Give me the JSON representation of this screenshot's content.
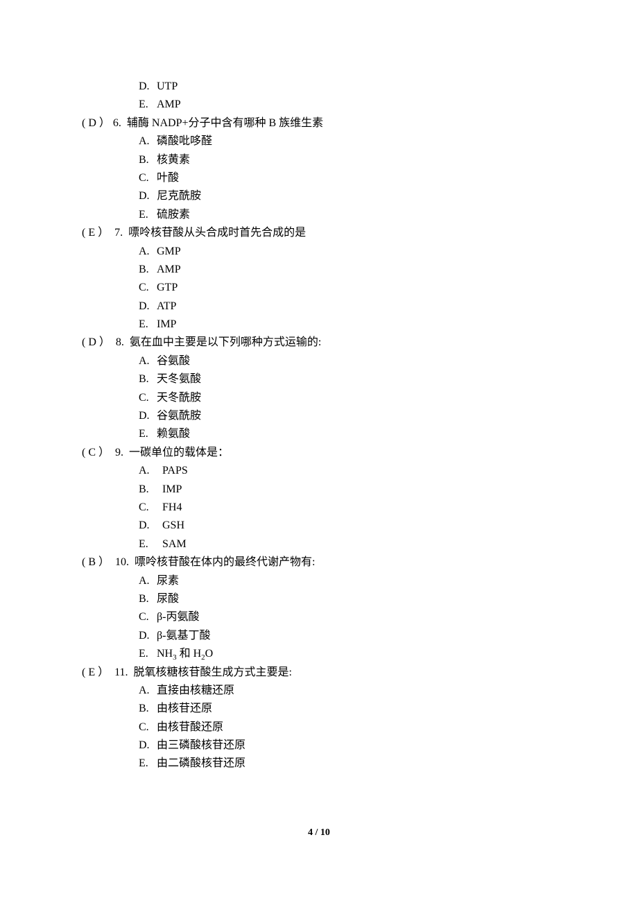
{
  "prev_options": [
    {
      "letter": "D.",
      "text": "UTP"
    },
    {
      "letter": "E.",
      "text": "AMP"
    }
  ],
  "questions": [
    {
      "answer": "D",
      "number": "6.",
      "stem": "辅酶 NADP+分子中含有哪种 B 族维生素",
      "options": [
        {
          "letter": "A.",
          "text": "磷酸吡哆醛"
        },
        {
          "letter": "B.",
          "text": "核黄素"
        },
        {
          "letter": "C.",
          "text": "叶酸"
        },
        {
          "letter": "D.",
          "text": "尼克酰胺"
        },
        {
          "letter": "E.",
          "text": "硫胺素"
        }
      ],
      "wide_num": false,
      "wide_opt": false
    },
    {
      "answer": "E",
      "number": "7.",
      "stem": "嘌呤核苷酸从头合成时首先合成的是",
      "options": [
        {
          "letter": "A.",
          "text": "GMP"
        },
        {
          "letter": "B.",
          "text": "AMP"
        },
        {
          "letter": "C.",
          "text": "GTP"
        },
        {
          "letter": "D.",
          "text": "ATP"
        },
        {
          "letter": "E.",
          "text": "IMP"
        }
      ],
      "wide_num": true,
      "wide_opt": false
    },
    {
      "answer": "D",
      "number": "8.",
      "stem": "氨在血中主要是以下列哪种方式运输的:",
      "options": [
        {
          "letter": "A.",
          "text": "谷氨酸"
        },
        {
          "letter": "B.",
          "text": "天冬氨酸"
        },
        {
          "letter": "C.",
          "text": "天冬酰胺"
        },
        {
          "letter": "D.",
          "text": "谷氨酰胺"
        },
        {
          "letter": "E.",
          "text": "赖氨酸"
        }
      ],
      "wide_num": true,
      "wide_opt": false
    },
    {
      "answer": "C",
      "number": "9.",
      "stem": "一碳单位的载体是：",
      "options": [
        {
          "letter": "A.",
          "text": "PAPS"
        },
        {
          "letter": "B.",
          "text": "IMP"
        },
        {
          "letter": "C.",
          "text": "FH4"
        },
        {
          "letter": "D.",
          "text": "GSH"
        },
        {
          "letter": "E.",
          "text": "SAM"
        }
      ],
      "wide_num": true,
      "wide_opt": true
    },
    {
      "answer": "B",
      "number": "10.",
      "stem": "嘌呤核苷酸在体内的最终代谢产物有:",
      "options": [
        {
          "letter": "A.",
          "text": "尿素"
        },
        {
          "letter": "B.",
          "text": "尿酸"
        },
        {
          "letter": "C.",
          "text": "β-丙氨酸"
        },
        {
          "letter": "D.",
          "text": "β-氨基丁酸"
        },
        {
          "letter": "E.",
          "text": "NH<sub>3</sub> 和 H<sub>2</sub>O",
          "html": true
        }
      ],
      "wide_num": true,
      "wide_opt": false
    },
    {
      "answer": "E",
      "number": "11.",
      "stem": "脱氧核糖核苷酸生成方式主要是:",
      "options": [
        {
          "letter": "A.",
          "text": "直接由核糖还原"
        },
        {
          "letter": "B.",
          "text": "由核苷还原"
        },
        {
          "letter": "C.",
          "text": "由核苷酸还原"
        },
        {
          "letter": "D.",
          "text": "由三磷酸核苷还原"
        },
        {
          "letter": "E.",
          "text": "由二磷酸核苷还原"
        }
      ],
      "wide_num": true,
      "wide_opt": false
    }
  ],
  "page_number": "4 / 10"
}
